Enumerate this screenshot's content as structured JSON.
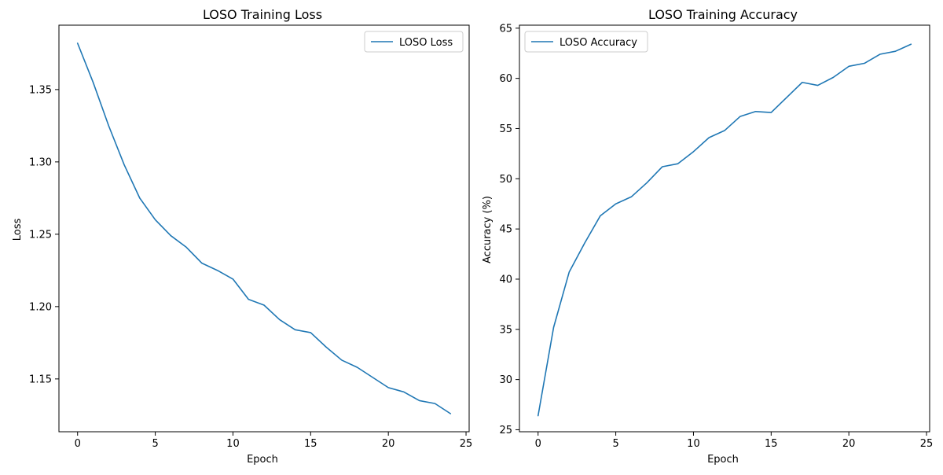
{
  "chart_data": [
    {
      "type": "line",
      "title": "LOSO Training Loss",
      "xlabel": "Epoch",
      "ylabel": "Loss",
      "xlim": [
        -1.2,
        25.2
      ],
      "ylim": [
        1.1135,
        1.3945
      ],
      "xticks": [
        0,
        5,
        10,
        15,
        20,
        25
      ],
      "yticks": [
        1.15,
        1.2,
        1.25,
        1.3,
        1.35
      ],
      "ytick_labels": [
        "1.15",
        "1.20",
        "1.25",
        "1.30",
        "1.35"
      ],
      "legend_position": "upper-right",
      "grid": false,
      "series": [
        {
          "name": "LOSO Loss",
          "color": "#1f77b4",
          "x": [
            0,
            1,
            2,
            3,
            4,
            5,
            6,
            7,
            8,
            9,
            10,
            11,
            12,
            13,
            14,
            15,
            16,
            17,
            18,
            19,
            20,
            21,
            22,
            23,
            24
          ],
          "values": [
            1.382,
            1.355,
            1.325,
            1.298,
            1.275,
            1.26,
            1.249,
            1.241,
            1.23,
            1.225,
            1.219,
            1.205,
            1.201,
            1.191,
            1.184,
            1.182,
            1.172,
            1.163,
            1.158,
            1.151,
            1.144,
            1.141,
            1.135,
            1.133,
            1.126
          ]
        }
      ]
    },
    {
      "type": "line",
      "title": "LOSO Training Accuracy",
      "xlabel": "Epoch",
      "ylabel": "Accuracy (%)",
      "xlim": [
        -1.2,
        25.2
      ],
      "ylim": [
        24.8,
        65.3
      ],
      "xticks": [
        0,
        5,
        10,
        15,
        20,
        25
      ],
      "yticks": [
        25,
        30,
        35,
        40,
        45,
        50,
        55,
        60,
        65
      ],
      "ytick_labels": [
        "25",
        "30",
        "35",
        "40",
        "45",
        "50",
        "55",
        "60",
        "65"
      ],
      "legend_position": "upper-left",
      "grid": false,
      "series": [
        {
          "name": "LOSO Accuracy",
          "color": "#1f77b4",
          "x": [
            0,
            1,
            2,
            3,
            4,
            5,
            6,
            7,
            8,
            9,
            10,
            11,
            12,
            13,
            14,
            15,
            16,
            17,
            18,
            19,
            20,
            21,
            22,
            23,
            24
          ],
          "values": [
            26.4,
            35.2,
            40.7,
            43.6,
            46.3,
            47.5,
            48.2,
            49.6,
            51.2,
            51.5,
            52.7,
            54.1,
            54.8,
            56.2,
            56.7,
            56.6,
            58.1,
            59.6,
            59.3,
            60.1,
            61.2,
            61.5,
            62.4,
            62.7,
            63.4
          ]
        }
      ]
    }
  ]
}
